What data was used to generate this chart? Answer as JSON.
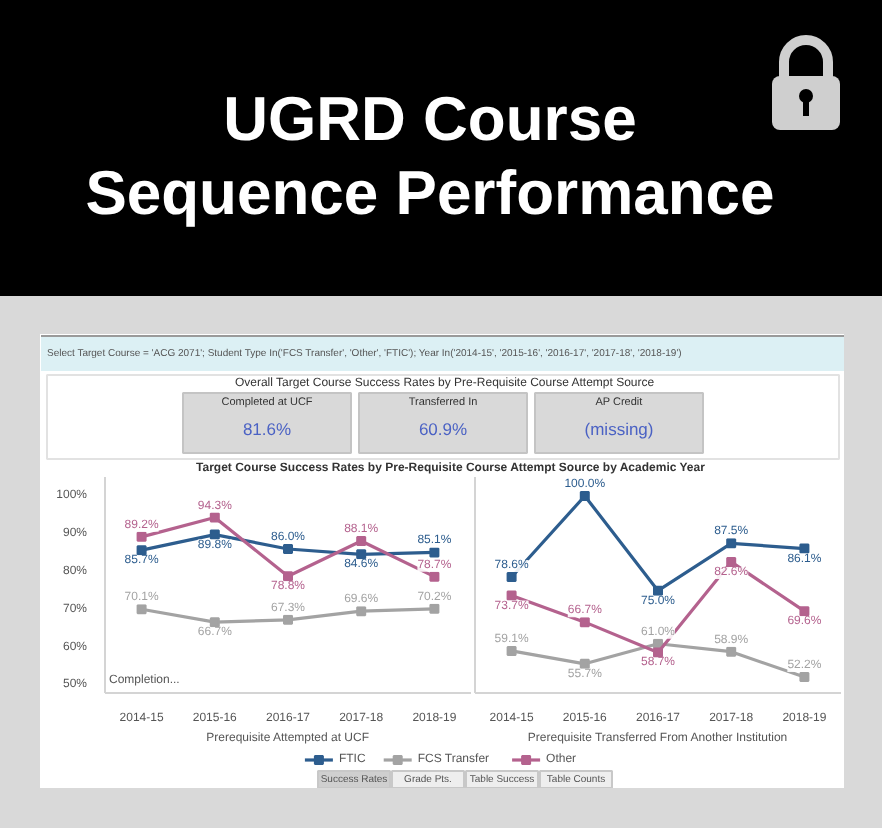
{
  "chart_data": [
    {
      "type": "other",
      "title": "UGRD Course Sequence Performance",
      "annotations": [
        "Select Target Course = 'ACG 2071'; Student Type In('FCS Transfer', 'Other', 'FTIC'); Year In('2014-15', '2015-16', '2016-17', '2017-18', '2018-19')"
      ]
    },
    {
      "type": "other",
      "title": "Overall Target Course Success Rates by Pre-Requisite Course Attempt Source",
      "categories": [
        "Completed at UCF",
        "Transferred In",
        "AP Credit"
      ],
      "value_labels": [
        "81.6%",
        "60.9%",
        "(missing)"
      ]
    },
    {
      "type": "line",
      "title": "Target Course Success Rates by Pre-Requisite Course Attempt Source by Academic Year",
      "xlabel": "Prerequisite Attempted at UCF",
      "annotations": [
        "Completion..."
      ],
      "categories": [
        "2014-15",
        "2015-16",
        "2016-17",
        "2017-18",
        "2018-19"
      ],
      "ylim": [
        48,
        105
      ],
      "yticks": [
        {
          "value": 50,
          "label": "50%"
        },
        {
          "value": 60,
          "label": "60%"
        },
        {
          "value": 70,
          "label": "70%"
        },
        {
          "value": 80,
          "label": "80%"
        },
        {
          "value": 90,
          "label": "90%"
        },
        {
          "value": 100,
          "label": "100%"
        }
      ],
      "marker": "square",
      "legend": "bottom",
      "series": [
        {
          "name": "FTIC",
          "color": "#2d5d8e",
          "values": [
            85.7,
            89.8,
            86.0,
            84.6,
            85.1
          ],
          "value_labels": [
            "85.7%",
            "89.8%",
            "86.0%",
            "84.6%",
            "85.1%"
          ]
        },
        {
          "name": "FCS Transfer",
          "color": "#a3a3a3",
          "values": [
            70.1,
            66.7,
            67.3,
            69.6,
            70.2
          ],
          "value_labels": [
            "70.1%",
            "66.7%",
            "67.3%",
            "69.6%",
            "70.2%"
          ]
        },
        {
          "name": "Other",
          "color": "#b4628e",
          "values": [
            89.2,
            94.3,
            78.8,
            88.1,
            78.7
          ],
          "value_labels": [
            "89.2%",
            "94.3%",
            "78.8%",
            "88.1%",
            "78.7%"
          ]
        }
      ]
    },
    {
      "type": "line",
      "xlabel": "Prerequisite Transferred From Another Institution",
      "categories": [
        "2014-15",
        "2015-16",
        "2016-17",
        "2017-18",
        "2018-19"
      ],
      "ylim": [
        48,
        105
      ],
      "tick_labels": "x",
      "marker": "square",
      "series": [
        {
          "name": "FTIC",
          "color": "#2d5d8e",
          "values": [
            78.6,
            100.0,
            75.0,
            87.5,
            86.1
          ],
          "value_labels": [
            "78.6%",
            "100.0%",
            "75.0%",
            "87.5%",
            "86.1%"
          ]
        },
        {
          "name": "FCS Transfer",
          "color": "#a3a3a3",
          "values": [
            59.1,
            55.7,
            61.0,
            58.9,
            52.2
          ],
          "value_labels": [
            "59.1%",
            "55.7%",
            "61.0%",
            "58.9%",
            "52.2%"
          ]
        },
        {
          "name": "Other",
          "color": "#b4628e",
          "values": [
            73.7,
            66.7,
            58.7,
            82.6,
            69.6
          ],
          "value_labels": [
            "73.7%",
            "66.7%",
            "58.7%",
            "82.6%",
            "69.6%"
          ]
        }
      ]
    },
    {
      "type": "other",
      "categories": [
        "Success Rates",
        "Grade Pts.",
        "Table Success",
        "Table Counts"
      ],
      "colors": [
        "#cfcfcf",
        "#eeeeee",
        "#eeeeee",
        "#eeeeee"
      ]
    }
  ]
}
